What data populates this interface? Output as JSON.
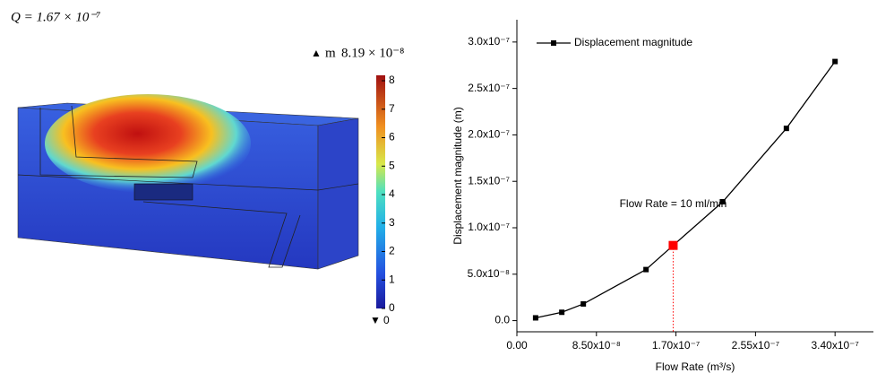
{
  "simulation": {
    "q_label": "Q = 1.67 × 10⁻⁷",
    "unit": "m",
    "max_label": "8.19 × 10⁻⁸",
    "min_label": "0",
    "colorbar_ticks": [
      0,
      1,
      2,
      3,
      4,
      5,
      6,
      7,
      8
    ],
    "colorbar_lim": [
      0,
      8.19
    ]
  },
  "chart_data": {
    "type": "line",
    "x_label": "Flow Rate (m³/s)",
    "y_label": "Displacement magnitude (m)",
    "x": [
      2e-08,
      4.8e-08,
      7.1e-08,
      1.38e-07,
      1.67e-07,
      2.2e-07,
      2.88e-07,
      3.4e-07
    ],
    "series": [
      {
        "name": "Displacement magnitude",
        "color": "#000000",
        "values": [
          3e-09,
          9e-09,
          1.8e-08,
          5.5e-08,
          8.1e-08,
          1.28e-07,
          2.07e-07,
          2.79e-07
        ]
      }
    ],
    "highlight": {
      "point": 4,
      "color": "#ff0000"
    },
    "annotation": "Flow Rate = 10 ml/min",
    "xlim": [
      0,
      3.81e-07
    ],
    "ylim": [
      -1.2e-08,
      3.24e-07
    ],
    "xticks": [
      {
        "value": 0,
        "label": "0.00"
      },
      {
        "value": 8.5e-08,
        "label": "8.50x10⁻⁸"
      },
      {
        "value": 1.7e-07,
        "label": "1.70x10⁻⁷"
      },
      {
        "value": 2.55e-07,
        "label": "2.55x10⁻⁷"
      },
      {
        "value": 3.4e-07,
        "label": "3.40x10⁻⁷"
      }
    ],
    "yticks": [
      {
        "value": 0,
        "label": "0.0"
      },
      {
        "value": 5e-08,
        "label": "5.0x10⁻⁸"
      },
      {
        "value": 1e-07,
        "label": "1.0x10⁻⁷"
      },
      {
        "value": 1.5e-07,
        "label": "1.5x10⁻⁷"
      },
      {
        "value": 2e-07,
        "label": "2.0x10⁻⁷"
      },
      {
        "value": 2.5e-07,
        "label": "2.5x10⁻⁷"
      },
      {
        "value": 3e-07,
        "label": "3.0x10⁻⁷"
      }
    ],
    "legend": "upper left"
  }
}
